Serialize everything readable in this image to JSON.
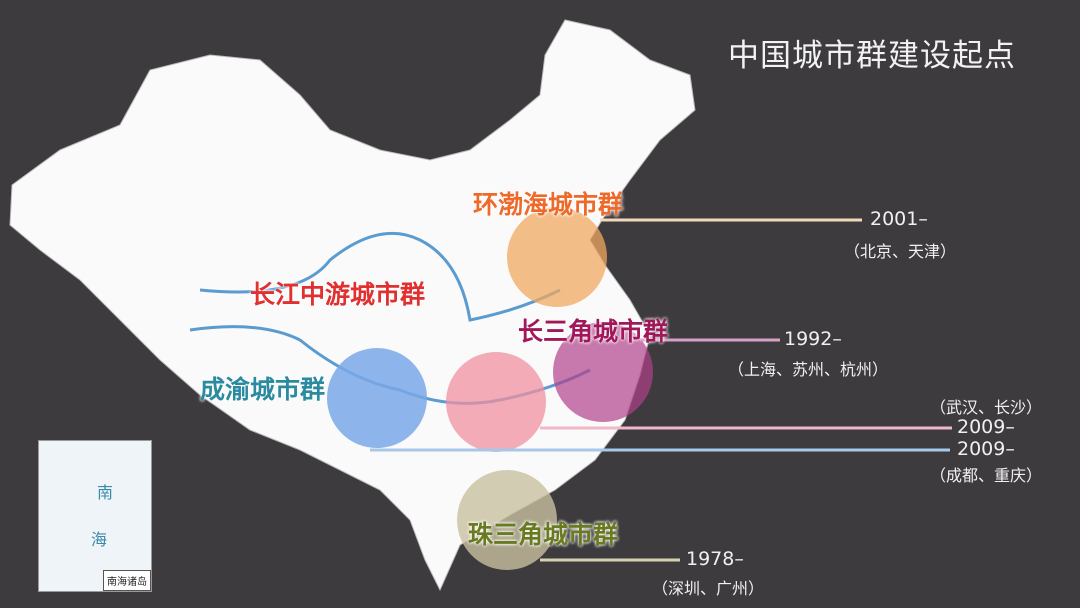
{
  "title": "中国城市群建设起点",
  "colors": {
    "background": "#3d3b3e",
    "bohai": "#f0a860",
    "yangtze_delta": "#b0408a",
    "middle_yangtze": "#f090a0",
    "chengyu": "#7aa8e8",
    "pearl_delta": "#c8c0a0"
  },
  "clusters": [
    {
      "name": "环渤海城市群",
      "year": "2001–",
      "cities": "（北京、天津）"
    },
    {
      "name": "长三角城市群",
      "year": "1992–",
      "cities": "（上海、苏州、杭州）"
    },
    {
      "name": "长江中游城市群",
      "year": "2009–",
      "cities": "（武汉、长沙）"
    },
    {
      "name": "成渝城市群",
      "year": "2009–",
      "cities": "（成都、重庆）"
    },
    {
      "name": "珠三角城市群",
      "year": "1978–",
      "cities": "（深圳、广州）"
    }
  ],
  "inset": {
    "label": "南海诸岛",
    "sea_chars": [
      "南",
      "海"
    ]
  }
}
